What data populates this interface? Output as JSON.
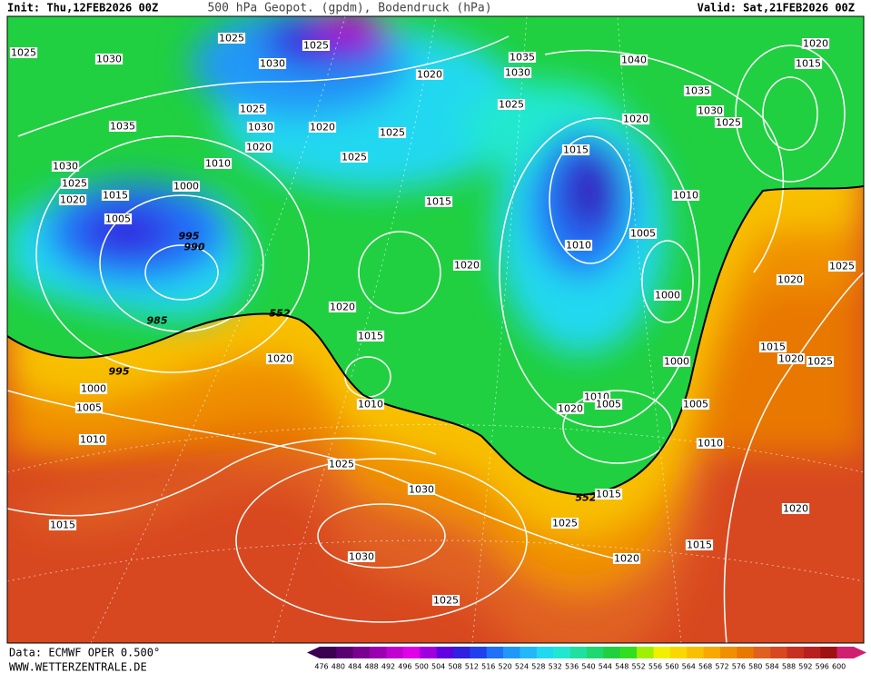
{
  "header": {
    "init": "Init: Thu,12FEB2026 00Z",
    "title": "500 hPa Geopot. (gpdm), Bodendruck (hPa)",
    "valid": "Valid: Sat,21FEB2026 00Z"
  },
  "footer": {
    "source": "Data: ECMWF OPER 0.500°",
    "site": "WWW.WETTERZENTRALE.DE"
  },
  "map": {
    "contour_labels": [
      "1025",
      "1025",
      "1025",
      "1030",
      "1030",
      "1020",
      "1030",
      "1035",
      "1040",
      "1020",
      "1015",
      "1035",
      "1030",
      "1025",
      "1025",
      "1030",
      "1020",
      "1025",
      "1025",
      "1020",
      "1035",
      "1020",
      "1025",
      "1015",
      "1010",
      "1030",
      "1025",
      "1000",
      "1015",
      "1020",
      "1015",
      "1010",
      "1005",
      "995",
      "990",
      "1005",
      "1010",
      "1020",
      "1025",
      "1020",
      "1000",
      "985",
      "1020",
      "552",
      "1015",
      "1015",
      "1020",
      "1020",
      "1025",
      "1000",
      "995",
      "1000",
      "1010",
      "1010",
      "1005",
      "1020",
      "1005",
      "1005",
      "1010",
      "1010",
      "1025",
      "1030",
      "552",
      "1015",
      "1025",
      "1015",
      "1020",
      "1015",
      "1030",
      "1020",
      "1025"
    ]
  },
  "colorbar": {
    "labels": [
      476,
      480,
      484,
      488,
      492,
      496,
      500,
      504,
      508,
      512,
      516,
      520,
      524,
      528,
      532,
      536,
      540,
      544,
      548,
      552,
      556,
      560,
      564,
      568,
      572,
      576,
      580,
      584,
      588,
      592,
      596,
      600
    ],
    "colors": [
      "#3c0050",
      "#5a0070",
      "#7a0090",
      "#9a00b0",
      "#c000d0",
      "#e000e8",
      "#a000e0",
      "#6000e0",
      "#3020e0",
      "#2040f0",
      "#2070f8",
      "#2098f8",
      "#20b8f8",
      "#20d8f0",
      "#20e8d0",
      "#20e0a0",
      "#20d870",
      "#20d040",
      "#30e020",
      "#a0f000",
      "#f0f000",
      "#f8d800",
      "#f8c000",
      "#f8a800",
      "#f09000",
      "#e87800",
      "#e06020",
      "#d84820",
      "#c83020",
      "#b82020",
      "#a01010",
      "#d02070"
    ]
  }
}
